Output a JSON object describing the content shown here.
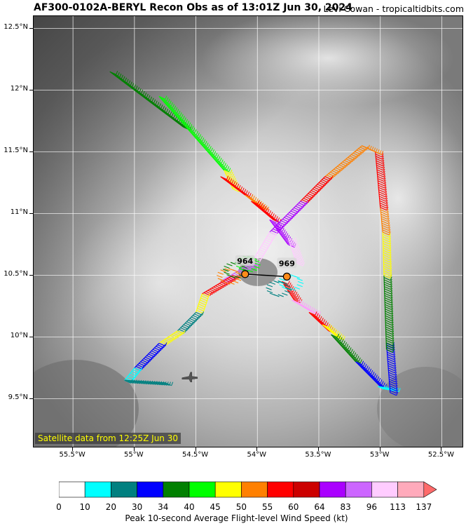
{
  "title": {
    "main": "AF300-0102A-BERYL Recon Obs as of 13:01Z Jun 30, 2024",
    "credit": "Levi Cowan - tropicaltidbits.com"
  },
  "satellite_label": "Satellite data from 12:25Z Jun 30",
  "map_extent": {
    "lon_min": -55.82,
    "lon_max": -52.32,
    "lat_min": 9.1,
    "lat_max": 12.6
  },
  "lat_ticks": [
    {
      "value": 12.5,
      "label": "12.5°N"
    },
    {
      "value": 12.0,
      "label": "12°N"
    },
    {
      "value": 11.5,
      "label": "11.5°N"
    },
    {
      "value": 11.0,
      "label": "11°N"
    },
    {
      "value": 10.5,
      "label": "10.5°N"
    },
    {
      "value": 10.0,
      "label": "10°N"
    },
    {
      "value": 9.5,
      "label": "9.5°N"
    }
  ],
  "lon_ticks": [
    {
      "value": -55.5,
      "label": "55.5°W"
    },
    {
      "value": -55.0,
      "label": "55°W"
    },
    {
      "value": -54.5,
      "label": "54.5°W"
    },
    {
      "value": -54.0,
      "label": "54°W"
    },
    {
      "value": -53.5,
      "label": "53.5°W"
    },
    {
      "value": -53.0,
      "label": "53°W"
    },
    {
      "value": -52.5,
      "label": "52.5°W"
    }
  ],
  "pressure_centers": [
    {
      "label": "964",
      "lat": 10.51,
      "lon": -54.1
    },
    {
      "label": "969",
      "lat": 10.49,
      "lon": -53.76
    }
  ],
  "aircraft_icon": "aircraft-icon",
  "aircraft_position": {
    "lat": 9.67,
    "lon": -54.59
  },
  "flight_track_segments": [
    {
      "from": [
        12.15,
        -55.2
      ],
      "to": [
        11.7,
        -54.6
      ],
      "color": "#008000"
    },
    {
      "from": [
        11.95,
        -54.8
      ],
      "to": [
        11.35,
        -54.27
      ],
      "color": "#00ff00"
    },
    {
      "from": [
        11.35,
        -54.27
      ],
      "to": [
        11.2,
        -54.2
      ],
      "color": "#ffff00"
    },
    {
      "from": [
        11.3,
        -54.3
      ],
      "to": [
        11.15,
        -54.1
      ],
      "color": "#ff0000"
    },
    {
      "from": [
        11.15,
        -54.1
      ],
      "to": [
        11.05,
        -53.97
      ],
      "color": "#ff8000"
    },
    {
      "from": [
        11.1,
        -54.05
      ],
      "to": [
        10.95,
        -53.87
      ],
      "color": "#ff0000"
    },
    {
      "from": [
        10.95,
        -53.9
      ],
      "to": [
        10.75,
        -53.75
      ],
      "color": "#aa00ff"
    },
    {
      "from": [
        10.8,
        -53.75
      ],
      "to": [
        10.6,
        -53.68
      ],
      "color": "#ffccff"
    },
    {
      "from": [
        10.45,
        -53.8
      ],
      "to": [
        10.3,
        -53.7
      ],
      "color": "#ff0000"
    },
    {
      "from": [
        10.3,
        -53.72
      ],
      "to": [
        10.2,
        -53.55
      ],
      "color": "#ff99ff"
    },
    {
      "from": [
        10.2,
        -53.58
      ],
      "to": [
        10.05,
        -53.42
      ],
      "color": "#ff0000"
    },
    {
      "from": [
        10.1,
        -53.47
      ],
      "to": [
        10.0,
        -53.35
      ],
      "color": "#ffff00"
    },
    {
      "from": [
        10.02,
        -53.4
      ],
      "to": [
        9.8,
        -53.2
      ],
      "color": "#008000"
    },
    {
      "from": [
        9.8,
        -53.2
      ],
      "to": [
        9.6,
        -53.0
      ],
      "color": "#0000ff"
    },
    {
      "from": [
        9.6,
        -53.02
      ],
      "to": [
        9.58,
        -52.9
      ],
      "color": "#00ffff"
    },
    {
      "from": [
        9.55,
        -52.92
      ],
      "to": [
        9.95,
        -52.95
      ],
      "color": "#0000ff"
    },
    {
      "from": [
        9.9,
        -52.95
      ],
      "to": [
        10.5,
        -52.97
      ],
      "color": "#008000"
    },
    {
      "from": [
        10.5,
        -52.97
      ],
      "to": [
        10.85,
        -52.98
      ],
      "color": "#ffff00"
    },
    {
      "from": [
        10.85,
        -52.98
      ],
      "to": [
        11.05,
        -53.0
      ],
      "color": "#ff8000"
    },
    {
      "from": [
        11.05,
        -53.0
      ],
      "to": [
        11.5,
        -53.04
      ],
      "color": "#ff0000"
    },
    {
      "from": [
        11.5,
        -53.04
      ],
      "to": [
        11.55,
        -53.15
      ],
      "color": "#ff8000"
    },
    {
      "from": [
        11.55,
        -53.15
      ],
      "to": [
        11.3,
        -53.45
      ],
      "color": "#ff8000"
    },
    {
      "from": [
        11.3,
        -53.45
      ],
      "to": [
        11.1,
        -53.65
      ],
      "color": "#ff0000"
    },
    {
      "from": [
        11.1,
        -53.65
      ],
      "to": [
        10.85,
        -53.9
      ],
      "color": "#aa00ff"
    },
    {
      "from": [
        10.85,
        -53.9
      ],
      "to": [
        10.6,
        -54.05
      ],
      "color": "#ffccff"
    },
    {
      "from": [
        10.6,
        -54.05
      ],
      "to": [
        10.45,
        -54.3
      ],
      "color": "#cc66ff"
    },
    {
      "from": [
        10.5,
        -54.2
      ],
      "to": [
        10.35,
        -54.45
      ],
      "color": "#ff0000"
    },
    {
      "from": [
        10.35,
        -54.45
      ],
      "to": [
        10.2,
        -54.5
      ],
      "color": "#ffff00"
    },
    {
      "from": [
        10.2,
        -54.5
      ],
      "to": [
        10.05,
        -54.65
      ],
      "color": "#008080"
    },
    {
      "from": [
        10.05,
        -54.65
      ],
      "to": [
        9.95,
        -54.8
      ],
      "color": "#ffff00"
    },
    {
      "from": [
        9.95,
        -54.8
      ],
      "to": [
        9.75,
        -55.0
      ],
      "color": "#0000ff"
    },
    {
      "from": [
        9.75,
        -55.0
      ],
      "to": [
        9.65,
        -55.08
      ],
      "color": "#00ffff"
    },
    {
      "from": [
        9.65,
        -55.08
      ],
      "to": [
        9.63,
        -54.75
      ],
      "color": "#008080"
    }
  ],
  "eye_ring_segments": [
    {
      "center": [
        10.55,
        -54.2
      ],
      "color": "#008000"
    },
    {
      "center": [
        10.5,
        -54.25
      ],
      "color": "#ff8000"
    },
    {
      "center": [
        10.6,
        -54.1
      ],
      "color": "#00ff00"
    },
    {
      "center": [
        10.45,
        -53.75
      ],
      "color": "#00ffff"
    },
    {
      "center": [
        10.4,
        -53.85
      ],
      "color": "#008080"
    }
  ],
  "colorbar": {
    "label": "Peak 10-second Average Flight-level Wind Speed (kt)",
    "ticks": [
      "0",
      "10",
      "20",
      "30",
      "34",
      "40",
      "45",
      "50",
      "55",
      "60",
      "64",
      "83",
      "96",
      "113",
      "137"
    ],
    "colors": [
      "#ffffff",
      "#00ffff",
      "#008080",
      "#0000ff",
      "#008000",
      "#00ff00",
      "#ffff00",
      "#ff8000",
      "#ff0000",
      "#cc0000",
      "#aa00ff",
      "#cc66ff",
      "#ffccff",
      "#ffaabb"
    ],
    "extend_color": "#ff6a6a"
  },
  "colors": {
    "gridline": "#ffffff",
    "track_line": "#000000",
    "center_fill": "#ff8c1a"
  }
}
